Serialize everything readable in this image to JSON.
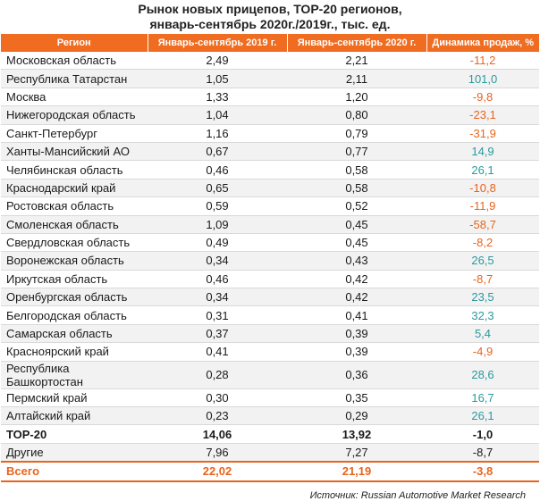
{
  "title": {
    "line1": "Рынок новых прицепов, ТОР-20 регионов,",
    "line2": "январь-сентябрь 2020г./2019г., тыс. ед."
  },
  "header": {
    "region": "Регион",
    "y2019": "Январь-сентябрь 2019 г.",
    "y2020": "Январь-сентябрь 2020 г.",
    "dynamics": "Динамика продаж, %"
  },
  "rows": [
    {
      "region": "Московская область",
      "v2019": "2,49",
      "v2020": "2,21",
      "dyn": "-11,2",
      "sign": "neg"
    },
    {
      "region": "Республика Татарстан",
      "v2019": "1,05",
      "v2020": "2,11",
      "dyn": "101,0",
      "sign": "pos"
    },
    {
      "region": "Москва",
      "v2019": "1,33",
      "v2020": "1,20",
      "dyn": "-9,8",
      "sign": "neg"
    },
    {
      "region": "Нижегородская область",
      "v2019": "1,04",
      "v2020": "0,80",
      "dyn": "-23,1",
      "sign": "neg"
    },
    {
      "region": "Санкт-Петербург",
      "v2019": "1,16",
      "v2020": "0,79",
      "dyn": "-31,9",
      "sign": "neg"
    },
    {
      "region": "Ханты-Мансийский АО",
      "v2019": "0,67",
      "v2020": "0,77",
      "dyn": "14,9",
      "sign": "pos"
    },
    {
      "region": "Челябинская область",
      "v2019": "0,46",
      "v2020": "0,58",
      "dyn": "26,1",
      "sign": "pos"
    },
    {
      "region": "Краснодарский край",
      "v2019": "0,65",
      "v2020": "0,58",
      "dyn": "-10,8",
      "sign": "neg"
    },
    {
      "region": "Ростовская область",
      "v2019": "0,59",
      "v2020": "0,52",
      "dyn": "-11,9",
      "sign": "neg"
    },
    {
      "region": "Смоленская область",
      "v2019": "1,09",
      "v2020": "0,45",
      "dyn": "-58,7",
      "sign": "neg"
    },
    {
      "region": "Свердловская область",
      "v2019": "0,49",
      "v2020": "0,45",
      "dyn": "-8,2",
      "sign": "neg"
    },
    {
      "region": "Воронежская область",
      "v2019": "0,34",
      "v2020": "0,43",
      "dyn": "26,5",
      "sign": "pos"
    },
    {
      "region": "Иркутская область",
      "v2019": "0,46",
      "v2020": "0,42",
      "dyn": "-8,7",
      "sign": "neg"
    },
    {
      "region": "Оренбургская область",
      "v2019": "0,34",
      "v2020": "0,42",
      "dyn": "23,5",
      "sign": "pos"
    },
    {
      "region": "Белгородская область",
      "v2019": "0,31",
      "v2020": "0,41",
      "dyn": "32,3",
      "sign": "pos"
    },
    {
      "region": "Самарская область",
      "v2019": "0,37",
      "v2020": "0,39",
      "dyn": "5,4",
      "sign": "pos"
    },
    {
      "region": "Красноярский край",
      "v2019": "0,41",
      "v2020": "0,39",
      "dyn": "-4,9",
      "sign": "neg"
    },
    {
      "region": "Республика Башкортостан",
      "v2019": "0,28",
      "v2020": "0,36",
      "dyn": "28,6",
      "sign": "pos"
    },
    {
      "region": "Пермский край",
      "v2019": "0,30",
      "v2020": "0,35",
      "dyn": "16,7",
      "sign": "pos"
    },
    {
      "region": "Алтайский край",
      "v2019": "0,23",
      "v2020": "0,29",
      "dyn": "26,1",
      "sign": "pos"
    }
  ],
  "top20": {
    "region": "ТОР-20",
    "v2019": "14,06",
    "v2020": "13,92",
    "dyn": "-1,0"
  },
  "other": {
    "region": "Другие",
    "v2019": "7,96",
    "v2020": "7,27",
    "dyn": "-8,7"
  },
  "total": {
    "region": "Всего",
    "v2019": "22,02",
    "v2020": "21,19",
    "dyn": "-3,8"
  },
  "source": "Источник: Russian Automotive Market Research",
  "colors": {
    "accent": "#ef6c21",
    "negative": "#e8641d",
    "positive": "#2a9a9f"
  }
}
